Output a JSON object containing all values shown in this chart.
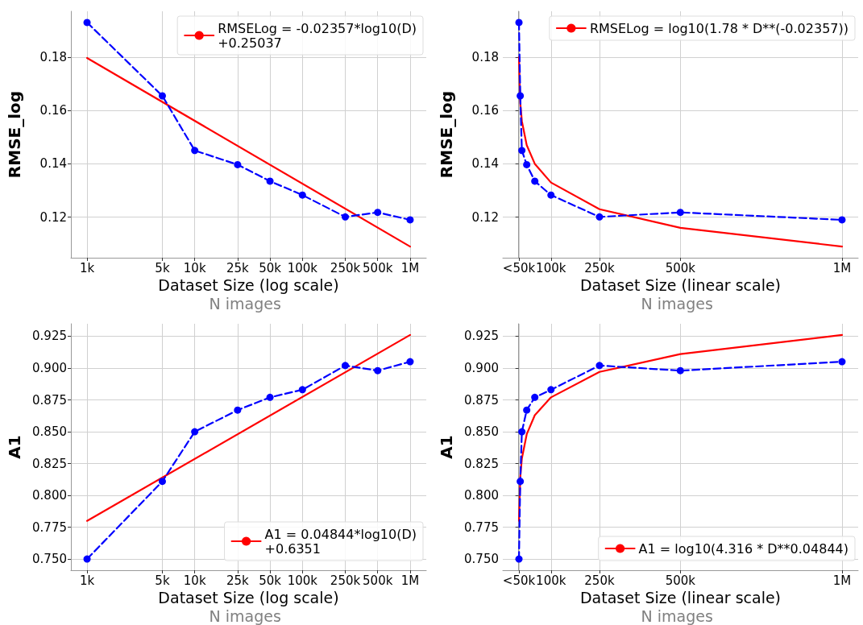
{
  "chart_data": [
    {
      "type": "line",
      "xlabel": "Dataset Size (log scale)",
      "ylabel": "RMSE_log",
      "annotations": [
        "N images"
      ],
      "log": "x",
      "grid": true,
      "legend": "top right",
      "xlim": [
        708,
        1412538
      ],
      "xticks": [
        {
          "value": 1000,
          "label": "1k"
        },
        {
          "value": 5000,
          "label": "5k"
        },
        {
          "value": 10000,
          "label": "10k"
        },
        {
          "value": 25000,
          "label": "25k"
        },
        {
          "value": 50000,
          "label": "50k"
        },
        {
          "value": 100000,
          "label": "100k"
        },
        {
          "value": 250000,
          "label": "250k"
        },
        {
          "value": 500000,
          "label": "500k"
        },
        {
          "value": 1000000,
          "label": "1M"
        }
      ],
      "ylim": [
        0.1048,
        0.1972
      ],
      "yticks": [
        0.12,
        0.14,
        0.16,
        0.18
      ],
      "series": [
        {
          "color": "#0000ff",
          "marker": "circle",
          "line_style": "dashed",
          "x": [
            1000,
            5000,
            10000,
            25000,
            50000,
            100000,
            250000,
            500000,
            1000000
          ],
          "values": [
            0.193,
            0.1655,
            0.145,
            0.1397,
            0.1335,
            0.1283,
            0.1201,
            0.1218,
            0.119
          ]
        },
        {
          "name": "RMSELog = -0.02357*log10(D)\n+0.25037",
          "color": "#ff0000",
          "marker": "none",
          "line_style": "solid",
          "x": [
            1000,
            1000000
          ],
          "values": [
            0.1797,
            0.109
          ]
        }
      ]
    },
    {
      "type": "line",
      "xlabel": "Dataset Size (linear scale)",
      "ylabel": "RMSE_log",
      "annotations": [
        "N images"
      ],
      "grid": true,
      "legend": "top right",
      "xlim": [
        -48950,
        1049950
      ],
      "xticks": [
        {
          "value": 1000,
          "label": "<50k"
        },
        {
          "value": 100000,
          "label": "100k"
        },
        {
          "value": 250000,
          "label": "250k"
        },
        {
          "value": 500000,
          "label": "500k"
        },
        {
          "value": 1000000,
          "label": "1M"
        }
      ],
      "ylim": [
        0.1048,
        0.1972
      ],
      "yticks": [
        0.12,
        0.14,
        0.16,
        0.18
      ],
      "series": [
        {
          "color": "#0000ff",
          "marker": "circle",
          "line_style": "dashed",
          "x": [
            1000,
            5000,
            10000,
            25000,
            50000,
            100000,
            250000,
            500000,
            1000000
          ],
          "values": [
            0.193,
            0.1655,
            0.145,
            0.1397,
            0.1335,
            0.1283,
            0.1201,
            0.1218,
            0.119
          ]
        },
        {
          "name": "RMSELog = log10(1.78 * D**(-0.02357))",
          "color": "#ff0000",
          "marker": "none",
          "line_style": "solid",
          "x": [
            1000,
            5000,
            10000,
            25000,
            50000,
            100000,
            250000,
            500000,
            1000000
          ],
          "values": [
            0.18,
            0.163,
            0.156,
            0.147,
            0.14,
            0.133,
            0.123,
            0.116,
            0.109
          ]
        }
      ]
    },
    {
      "type": "line",
      "xlabel": "Dataset Size (log scale)",
      "ylabel": "A1",
      "annotations": [
        "N images"
      ],
      "log": "x",
      "grid": true,
      "legend": "bottom right",
      "xlim": [
        708,
        1412538
      ],
      "xticks": [
        {
          "value": 1000,
          "label": "1k"
        },
        {
          "value": 5000,
          "label": "5k"
        },
        {
          "value": 10000,
          "label": "10k"
        },
        {
          "value": 25000,
          "label": "25k"
        },
        {
          "value": 50000,
          "label": "50k"
        },
        {
          "value": 100000,
          "label": "100k"
        },
        {
          "value": 250000,
          "label": "250k"
        },
        {
          "value": 500000,
          "label": "500k"
        },
        {
          "value": 1000000,
          "label": "1M"
        }
      ],
      "ylim": [
        0.7412,
        0.9348
      ],
      "yticks": [
        {
          "value": 0.75,
          "label": "0.750"
        },
        {
          "value": 0.775,
          "label": "0.775"
        },
        {
          "value": 0.8,
          "label": "0.800"
        },
        {
          "value": 0.825,
          "label": "0.825"
        },
        {
          "value": 0.85,
          "label": "0.850"
        },
        {
          "value": 0.875,
          "label": "0.875"
        },
        {
          "value": 0.9,
          "label": "0.900"
        },
        {
          "value": 0.925,
          "label": "0.925"
        }
      ],
      "series": [
        {
          "color": "#0000ff",
          "marker": "circle",
          "line_style": "dashed",
          "x": [
            1000,
            5000,
            10000,
            25000,
            50000,
            100000,
            250000,
            500000,
            1000000
          ],
          "values": [
            0.75,
            0.811,
            0.85,
            0.867,
            0.877,
            0.883,
            0.902,
            0.898,
            0.905
          ]
        },
        {
          "name": "A1 = 0.04844*log10(D)\n+0.6351",
          "color": "#ff0000",
          "marker": "none",
          "line_style": "solid",
          "x": [
            1000,
            1000000
          ],
          "values": [
            0.78,
            0.926
          ]
        }
      ]
    },
    {
      "type": "line",
      "xlabel": "Dataset Size (linear scale)",
      "ylabel": "A1",
      "annotations": [
        "N images"
      ],
      "grid": true,
      "legend": "bottom right",
      "xlim": [
        -48950,
        1049950
      ],
      "xticks": [
        {
          "value": 1000,
          "label": "<50k"
        },
        {
          "value": 100000,
          "label": "100k"
        },
        {
          "value": 250000,
          "label": "250k"
        },
        {
          "value": 500000,
          "label": "500k"
        },
        {
          "value": 1000000,
          "label": "1M"
        }
      ],
      "ylim": [
        0.7412,
        0.9348
      ],
      "yticks": [
        {
          "value": 0.75,
          "label": "0.750"
        },
        {
          "value": 0.775,
          "label": "0.775"
        },
        {
          "value": 0.8,
          "label": "0.800"
        },
        {
          "value": 0.825,
          "label": "0.825"
        },
        {
          "value": 0.85,
          "label": "0.850"
        },
        {
          "value": 0.875,
          "label": "0.875"
        },
        {
          "value": 0.9,
          "label": "0.900"
        },
        {
          "value": 0.925,
          "label": "0.925"
        }
      ],
      "series": [
        {
          "color": "#0000ff",
          "marker": "circle",
          "line_style": "dashed",
          "x": [
            1000,
            5000,
            10000,
            25000,
            50000,
            100000,
            250000,
            500000,
            1000000
          ],
          "values": [
            0.75,
            0.811,
            0.85,
            0.867,
            0.877,
            0.883,
            0.902,
            0.898,
            0.905
          ]
        },
        {
          "name": "A1 = log10(4.316 * D**0.04844)",
          "color": "#ff0000",
          "marker": "none",
          "line_style": "solid",
          "x": [
            1000,
            5000,
            10000,
            25000,
            50000,
            100000,
            250000,
            500000,
            1000000
          ],
          "values": [
            0.78,
            0.814,
            0.829,
            0.848,
            0.863,
            0.877,
            0.897,
            0.911,
            0.926
          ]
        }
      ]
    }
  ]
}
